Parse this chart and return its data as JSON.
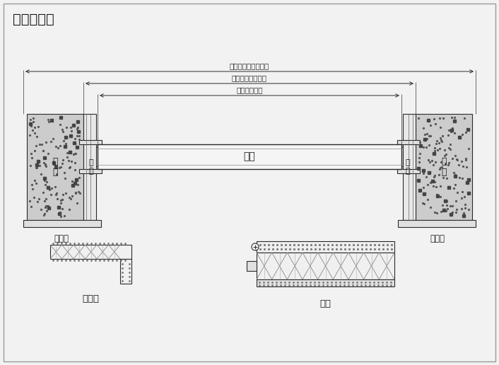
{
  "title": "剖面示意图",
  "title_fontsize": 14,
  "bg_color": "#f2f2f2",
  "border_color": "#bbbbbb",
  "line_color": "#2a2a2a",
  "fill_wall": "#c8c8c8",
  "fill_light": "#f0f0f0",
  "fill_white": "#ffffff",
  "dim_line1_label": "门套线外计宽度尺寸",
  "dim_line2_label": "门套外计宽度尺寸",
  "dim_line3_label": "门扇宽度尺寸",
  "door_panel_label": "门扇",
  "left_wall_label": "墙\n体",
  "right_wall_label": "墙\n体",
  "left_frame_label": "门\n套",
  "right_frame_label": "门\n套",
  "left_trim_label": "门套线",
  "right_trim_label": "门套线",
  "detail1_label": "门套线",
  "detail2_label": "门套",
  "wall_hatch": ".",
  "figsize": [
    7.06,
    5.16
  ],
  "dpi": 100
}
